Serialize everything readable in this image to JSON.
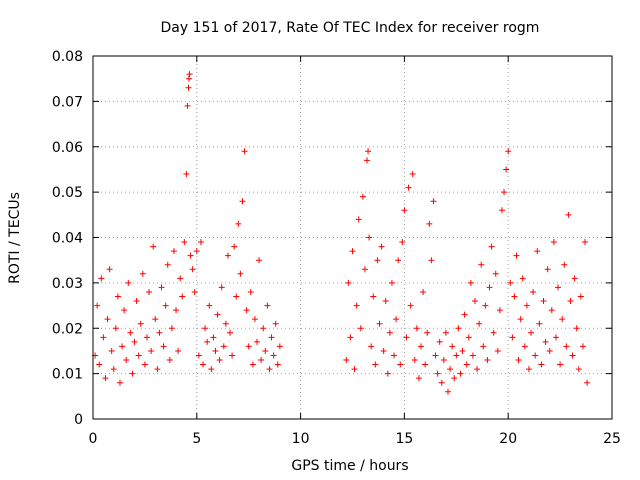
{
  "chart_data": {
    "type": "scatter",
    "title": "Day 151 of 2017, Rate Of TEC Index for receiver rogm",
    "xlabel": "GPS time / hours",
    "ylabel": "ROTI / TECUs",
    "xlim": [
      0,
      25
    ],
    "ylim": [
      0,
      0.08
    ],
    "xticks": [
      0,
      5,
      10,
      15,
      20,
      25
    ],
    "yticks": [
      0,
      0.01,
      0.02,
      0.03,
      0.04,
      0.05,
      0.06,
      0.07,
      0.08
    ],
    "xtick_labels": [
      "0",
      "5",
      "10",
      "15",
      "20",
      "25"
    ],
    "ytick_labels": [
      "0",
      "0.01",
      "0.02",
      "0.03",
      "0.04",
      "0.05",
      "0.06",
      "0.07",
      "0.08"
    ],
    "grid": true,
    "legend": "none",
    "marker": "+",
    "color": "#ff0000",
    "series": [
      {
        "values": [
          [
            0.1,
            0.014
          ],
          [
            0.2,
            0.025
          ],
          [
            0.3,
            0.012
          ],
          [
            0.4,
            0.031
          ],
          [
            0.5,
            0.018
          ],
          [
            0.6,
            0.009
          ],
          [
            0.7,
            0.022
          ],
          [
            0.8,
            0.033
          ],
          [
            0.9,
            0.015
          ],
          [
            1.0,
            0.011
          ],
          [
            1.1,
            0.02
          ],
          [
            1.2,
            0.027
          ],
          [
            1.3,
            0.008
          ],
          [
            1.4,
            0.016
          ],
          [
            1.5,
            0.024
          ],
          [
            1.6,
            0.013
          ],
          [
            1.7,
            0.03
          ],
          [
            1.8,
            0.019
          ],
          [
            1.9,
            0.01
          ],
          [
            2.0,
            0.017
          ],
          [
            2.1,
            0.026
          ],
          [
            2.2,
            0.014
          ],
          [
            2.3,
            0.021
          ],
          [
            2.4,
            0.032
          ],
          [
            2.5,
            0.012
          ],
          [
            2.6,
            0.018
          ],
          [
            2.7,
            0.028
          ],
          [
            2.8,
            0.015
          ],
          [
            2.9,
            0.038
          ],
          [
            3.0,
            0.022
          ],
          [
            3.1,
            0.011
          ],
          [
            3.2,
            0.019
          ],
          [
            3.3,
            0.029
          ],
          [
            3.4,
            0.016
          ],
          [
            3.5,
            0.025
          ],
          [
            3.6,
            0.034
          ],
          [
            3.7,
            0.013
          ],
          [
            3.8,
            0.02
          ],
          [
            3.9,
            0.037
          ],
          [
            4.0,
            0.024
          ],
          [
            4.1,
            0.015
          ],
          [
            4.2,
            0.031
          ],
          [
            4.3,
            0.027
          ],
          [
            4.4,
            0.039
          ],
          [
            4.5,
            0.054
          ],
          [
            4.55,
            0.069
          ],
          [
            4.6,
            0.073
          ],
          [
            4.62,
            0.075
          ],
          [
            4.65,
            0.076
          ],
          [
            4.7,
            0.036
          ],
          [
            4.8,
            0.033
          ],
          [
            4.9,
            0.028
          ],
          [
            5.0,
            0.037
          ],
          [
            5.1,
            0.014
          ],
          [
            5.2,
            0.039
          ],
          [
            5.3,
            0.012
          ],
          [
            5.4,
            0.02
          ],
          [
            5.5,
            0.017
          ],
          [
            5.6,
            0.025
          ],
          [
            5.7,
            0.011
          ],
          [
            5.8,
            0.018
          ],
          [
            5.9,
            0.015
          ],
          [
            6.0,
            0.023
          ],
          [
            6.1,
            0.013
          ],
          [
            6.2,
            0.029
          ],
          [
            6.3,
            0.016
          ],
          [
            6.4,
            0.021
          ],
          [
            6.5,
            0.036
          ],
          [
            6.6,
            0.019
          ],
          [
            6.7,
            0.014
          ],
          [
            6.8,
            0.038
          ],
          [
            6.9,
            0.027
          ],
          [
            7.0,
            0.043
          ],
          [
            7.1,
            0.032
          ],
          [
            7.2,
            0.048
          ],
          [
            7.3,
            0.059
          ],
          [
            7.4,
            0.024
          ],
          [
            7.5,
            0.016
          ],
          [
            7.6,
            0.028
          ],
          [
            7.7,
            0.012
          ],
          [
            7.8,
            0.022
          ],
          [
            7.9,
            0.017
          ],
          [
            8.0,
            0.035
          ],
          [
            8.1,
            0.013
          ],
          [
            8.2,
            0.02
          ],
          [
            8.3,
            0.015
          ],
          [
            8.4,
            0.025
          ],
          [
            8.5,
            0.011
          ],
          [
            8.6,
            0.018
          ],
          [
            8.7,
            0.014
          ],
          [
            8.8,
            0.021
          ],
          [
            8.9,
            0.012
          ],
          [
            9.0,
            0.016
          ],
          [
            12.2,
            0.013
          ],
          [
            12.3,
            0.03
          ],
          [
            12.4,
            0.018
          ],
          [
            12.5,
            0.037
          ],
          [
            12.6,
            0.011
          ],
          [
            12.7,
            0.025
          ],
          [
            12.8,
            0.044
          ],
          [
            12.9,
            0.02
          ],
          [
            13.0,
            0.049
          ],
          [
            13.1,
            0.033
          ],
          [
            13.2,
            0.057
          ],
          [
            13.25,
            0.059
          ],
          [
            13.3,
            0.04
          ],
          [
            13.4,
            0.016
          ],
          [
            13.5,
            0.027
          ],
          [
            13.6,
            0.012
          ],
          [
            13.7,
            0.035
          ],
          [
            13.8,
            0.021
          ],
          [
            13.9,
            0.038
          ],
          [
            14.0,
            0.015
          ],
          [
            14.1,
            0.026
          ],
          [
            14.2,
            0.01
          ],
          [
            14.3,
            0.019
          ],
          [
            14.4,
            0.03
          ],
          [
            14.5,
            0.014
          ],
          [
            14.6,
            0.022
          ],
          [
            14.7,
            0.035
          ],
          [
            14.8,
            0.012
          ],
          [
            14.9,
            0.039
          ],
          [
            15.0,
            0.046
          ],
          [
            15.1,
            0.018
          ],
          [
            15.2,
            0.051
          ],
          [
            15.3,
            0.025
          ],
          [
            15.4,
            0.054
          ],
          [
            15.5,
            0.013
          ],
          [
            15.6,
            0.02
          ],
          [
            15.7,
            0.009
          ],
          [
            15.8,
            0.016
          ],
          [
            15.9,
            0.028
          ],
          [
            16.0,
            0.012
          ],
          [
            16.1,
            0.019
          ],
          [
            16.2,
            0.043
          ],
          [
            16.3,
            0.035
          ],
          [
            16.4,
            0.048
          ],
          [
            16.5,
            0.014
          ],
          [
            16.6,
            0.01
          ],
          [
            16.7,
            0.017
          ],
          [
            16.8,
            0.008
          ],
          [
            16.9,
            0.013
          ],
          [
            17.0,
            0.019
          ],
          [
            17.1,
            0.006
          ],
          [
            17.2,
            0.011
          ],
          [
            17.3,
            0.016
          ],
          [
            17.4,
            0.009
          ],
          [
            17.5,
            0.014
          ],
          [
            17.6,
            0.02
          ],
          [
            17.7,
            0.01
          ],
          [
            17.8,
            0.015
          ],
          [
            17.9,
            0.023
          ],
          [
            18.0,
            0.012
          ],
          [
            18.1,
            0.018
          ],
          [
            18.2,
            0.03
          ],
          [
            18.3,
            0.014
          ],
          [
            18.4,
            0.026
          ],
          [
            18.5,
            0.011
          ],
          [
            18.6,
            0.021
          ],
          [
            18.7,
            0.034
          ],
          [
            18.8,
            0.016
          ],
          [
            18.9,
            0.025
          ],
          [
            19.0,
            0.013
          ],
          [
            19.1,
            0.029
          ],
          [
            19.2,
            0.038
          ],
          [
            19.3,
            0.019
          ],
          [
            19.4,
            0.032
          ],
          [
            19.5,
            0.015
          ],
          [
            19.6,
            0.024
          ],
          [
            19.7,
            0.046
          ],
          [
            19.8,
            0.05
          ],
          [
            19.9,
            0.055
          ],
          [
            20.0,
            0.059
          ],
          [
            20.1,
            0.03
          ],
          [
            20.2,
            0.018
          ],
          [
            20.3,
            0.027
          ],
          [
            20.4,
            0.036
          ],
          [
            20.5,
            0.013
          ],
          [
            20.6,
            0.022
          ],
          [
            20.7,
            0.031
          ],
          [
            20.8,
            0.016
          ],
          [
            20.9,
            0.025
          ],
          [
            21.0,
            0.011
          ],
          [
            21.1,
            0.019
          ],
          [
            21.2,
            0.028
          ],
          [
            21.3,
            0.014
          ],
          [
            21.4,
            0.037
          ],
          [
            21.5,
            0.021
          ],
          [
            21.6,
            0.012
          ],
          [
            21.7,
            0.026
          ],
          [
            21.8,
            0.017
          ],
          [
            21.9,
            0.033
          ],
          [
            22.0,
            0.015
          ],
          [
            22.1,
            0.024
          ],
          [
            22.2,
            0.039
          ],
          [
            22.3,
            0.018
          ],
          [
            22.4,
            0.029
          ],
          [
            22.5,
            0.012
          ],
          [
            22.6,
            0.022
          ],
          [
            22.7,
            0.034
          ],
          [
            22.8,
            0.016
          ],
          [
            22.9,
            0.045
          ],
          [
            23.0,
            0.026
          ],
          [
            23.1,
            0.014
          ],
          [
            23.2,
            0.031
          ],
          [
            23.3,
            0.02
          ],
          [
            23.4,
            0.011
          ],
          [
            23.5,
            0.027
          ],
          [
            23.6,
            0.016
          ],
          [
            23.7,
            0.039
          ],
          [
            23.8,
            0.008
          ]
        ]
      }
    ]
  }
}
